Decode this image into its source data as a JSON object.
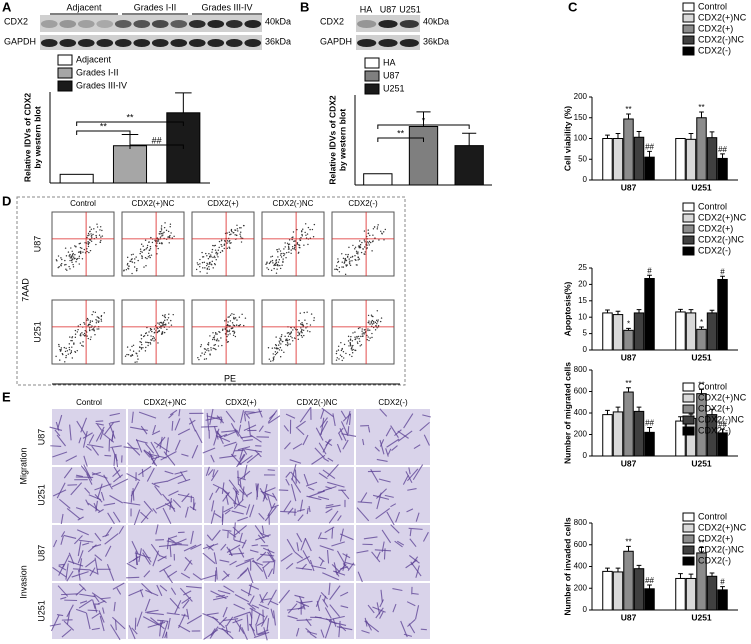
{
  "panels": {
    "a": "A",
    "b": "B",
    "c": "C",
    "d": "D",
    "e": "E"
  },
  "blot_a": {
    "groups": [
      "Adjacent",
      "Grades I-II",
      "Grades III-IV"
    ],
    "rows": [
      "CDX2",
      "GAPDH"
    ],
    "sizes": [
      "40kDa",
      "36kDa"
    ]
  },
  "blot_b": {
    "groups": [
      "HA",
      "U87",
      "U251"
    ],
    "rows": [
      "CDX2",
      "GAPDH"
    ],
    "sizes": [
      "40kDa",
      "36kDa"
    ]
  },
  "flow": {
    "columns": [
      "Control",
      "CDX2(+)NC",
      "CDX2(+)",
      "CDX2(-)NC",
      "CDX2(-)"
    ],
    "rows": [
      "U87",
      "U251"
    ],
    "y_label": "7AAD",
    "x_label": "PE"
  },
  "micrographs": {
    "columns": [
      "Control",
      "CDX2(+)NC",
      "CDX2(+)",
      "CDX2(-)NC",
      "CDX2(-)"
    ],
    "rows": [
      "U87",
      "U251",
      "U87",
      "U251"
    ],
    "groups": [
      "Migration",
      "Invasion"
    ]
  },
  "chart_data": [
    {
      "type": "bar",
      "ylabel": [
        "Relative IDVs of CDX2",
        "by western blot"
      ],
      "ylim": [
        0,
        10.5
      ],
      "series": [
        {
          "name": "Adjacent",
          "color": "#ffffff",
          "values": [
            1
          ]
        },
        {
          "name": "Grades I-II",
          "color": "#a6a6a6",
          "values": [
            4.3
          ],
          "errors": [
            1.3
          ]
        },
        {
          "name": "Grades III-IV",
          "color": "#1a1a1a",
          "values": [
            8.1
          ],
          "errors": [
            2.3
          ]
        }
      ],
      "annotations": [
        "**",
        "**",
        "##"
      ]
    },
    {
      "type": "bar",
      "ylabel": [
        "Relative IDVs of CDX2",
        "by western blot"
      ],
      "ylim": [
        0,
        8
      ],
      "series": [
        {
          "name": "HA",
          "color": "#ffffff",
          "values": [
            1
          ]
        },
        {
          "name": "U87",
          "color": "#7f7f7f",
          "values": [
            5.2
          ],
          "errors": [
            1.3
          ]
        },
        {
          "name": "U251",
          "color": "#1a1a1a",
          "values": [
            3.5
          ],
          "errors": [
            1.1
          ]
        }
      ],
      "annotations": [
        "*",
        "**"
      ]
    },
    {
      "type": "grouped-bar",
      "ylabel": "Cell viability (%)",
      "categories": [
        "U87",
        "U251"
      ],
      "ylim": [
        0,
        200
      ],
      "yticks": [
        0,
        50,
        100,
        150,
        200
      ],
      "series": [
        {
          "name": "Control",
          "color": "#ffffff",
          "values": [
            100,
            100
          ],
          "errors": [
            8,
            0
          ]
        },
        {
          "name": "CDX2(+)NC",
          "color": "#d9d9d9",
          "values": [
            100,
            98
          ],
          "errors": [
            12,
            14
          ]
        },
        {
          "name": "CDX2(+)",
          "color": "#8c8c8c",
          "values": [
            147,
            150
          ],
          "errors": [
            12,
            14
          ]
        },
        {
          "name": "CDX2(-)NC",
          "color": "#404040",
          "values": [
            103,
            102
          ],
          "errors": [
            14,
            14
          ]
        },
        {
          "name": "CDX2(-)",
          "color": "#000000",
          "values": [
            55,
            52
          ],
          "errors": [
            14,
            11
          ]
        }
      ],
      "annotations": [
        "**",
        "##",
        "**",
        "##"
      ]
    },
    {
      "type": "grouped-bar",
      "ylabel": "Apoptosis(%)",
      "categories": [
        "U87",
        "U251"
      ],
      "ylim": [
        0,
        25
      ],
      "yticks": [
        0,
        5,
        10,
        15,
        20,
        25
      ],
      "series": [
        {
          "name": "Control",
          "color": "#ffffff",
          "values": [
            11.3,
            11.6
          ],
          "errors": [
            0.9,
            0.8
          ]
        },
        {
          "name": "CDX2(+)NC",
          "color": "#d9d9d9",
          "values": [
            10.8,
            11.3
          ],
          "errors": [
            1.0,
            1.0
          ]
        },
        {
          "name": "CDX2(+)",
          "color": "#8c8c8c",
          "values": [
            6.0,
            6.3
          ],
          "errors": [
            0.6,
            0.7
          ]
        },
        {
          "name": "CDX2(-)NC",
          "color": "#404040",
          "values": [
            11.3,
            11.3
          ],
          "errors": [
            1.0,
            0.8
          ]
        },
        {
          "name": "CDX2(-)",
          "color": "#000000",
          "values": [
            21.8,
            21.5
          ],
          "errors": [
            1.0,
            1.0
          ]
        }
      ],
      "annotations": [
        "*",
        "#",
        "*",
        "#"
      ]
    },
    {
      "type": "grouped-bar",
      "ylabel": "Number of migrated cells",
      "categories": [
        "U87",
        "U251"
      ],
      "ylim": [
        0,
        800
      ],
      "yticks": [
        0,
        200,
        400,
        600,
        800
      ],
      "series": [
        {
          "name": "Control",
          "color": "#ffffff",
          "values": [
            385,
            325
          ],
          "errors": [
            40,
            40
          ]
        },
        {
          "name": "CDX2(+)NC",
          "color": "#d9d9d9",
          "values": [
            410,
            350
          ],
          "errors": [
            45,
            40
          ]
        },
        {
          "name": "CDX2(+)",
          "color": "#8c8c8c",
          "values": [
            595,
            580
          ],
          "errors": [
            40,
            40
          ]
        },
        {
          "name": "CDX2(-)NC",
          "color": "#404040",
          "values": [
            415,
            385
          ],
          "errors": [
            40,
            50
          ]
        },
        {
          "name": "CDX2(-)",
          "color": "#000000",
          "values": [
            220,
            215
          ],
          "errors": [
            45,
            35
          ]
        }
      ],
      "annotations": [
        "**",
        "##",
        "**",
        "##"
      ]
    },
    {
      "type": "grouped-bar",
      "ylabel": "Number of invaded cells",
      "categories": [
        "U87",
        "U251"
      ],
      "ylim": [
        0,
        800
      ],
      "yticks": [
        0,
        200,
        400,
        600,
        800
      ],
      "series": [
        {
          "name": "Control",
          "color": "#ffffff",
          "values": [
            355,
            290
          ],
          "errors": [
            30,
            45
          ]
        },
        {
          "name": "CDX2(+)NC",
          "color": "#d9d9d9",
          "values": [
            350,
            290
          ],
          "errors": [
            35,
            40
          ]
        },
        {
          "name": "CDX2(+)",
          "color": "#8c8c8c",
          "values": [
            540,
            525
          ],
          "errors": [
            45,
            50
          ]
        },
        {
          "name": "CDX2(-)NC",
          "color": "#404040",
          "values": [
            380,
            310
          ],
          "errors": [
            30,
            30
          ]
        },
        {
          "name": "CDX2(-)",
          "color": "#000000",
          "values": [
            195,
            185
          ],
          "errors": [
            35,
            30
          ]
        }
      ],
      "annotations": [
        "**",
        "##",
        "**",
        "#"
      ]
    }
  ]
}
